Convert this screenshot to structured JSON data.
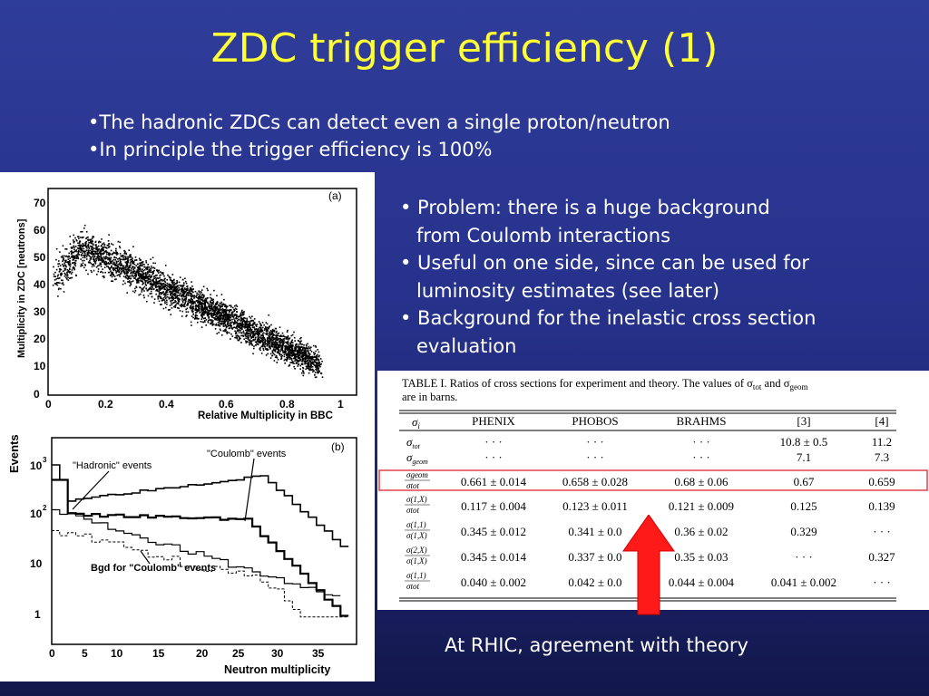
{
  "slide": {
    "title": "ZDC trigger efficiency (1)",
    "intro": [
      "•The hadronic ZDCs can detect even a single proton/neutron",
      "•In principle the trigger efficiency is 100%"
    ],
    "bullets": [
      "• Problem: there is a huge background from Coulomb interactions",
      "• Useful on one side, since can be used for luminosity estimates (see later)",
      "• Background for the inelastic cross section evaluation"
    ],
    "bullet_lines": [
      [
        "• Problem: there is a huge background",
        "from Coulomb interactions"
      ],
      [
        "• Useful on one side, since can be used for",
        "luminosity estimates (see later)"
      ],
      [
        "• Background for the inelastic cross section",
        "evaluation"
      ]
    ],
    "caption": "At RHIC, agreement with theory"
  },
  "plot_a": {
    "panel_label": "(a)",
    "ylabel": "Multiplicity in ZDC  [neutrons]",
    "xlabel": "Relative Multiplicity in BBC",
    "yticks": [
      "0",
      "10",
      "20",
      "30",
      "40",
      "50",
      "60",
      "70"
    ],
    "xticks": [
      "0",
      "0.2",
      "0.4",
      "0.6",
      "0.8",
      "1"
    ]
  },
  "plot_b": {
    "panel_label": "(b)",
    "ylabel": "Events",
    "xlabel": "Neutron multiplicity",
    "yticks": [
      "1",
      "10",
      "10",
      "10"
    ],
    "ytick_exps": [
      "",
      "",
      "2",
      "3"
    ],
    "xticks": [
      "0",
      "5",
      "10",
      "15",
      "20",
      "25",
      "30",
      "35"
    ],
    "annotations": [
      "\"Hadronic\" events",
      "\"Coulomb\" events",
      "Bgd for \"Coulomb\"  events"
    ]
  },
  "table": {
    "caption_line1": "TABLE I.   Ratios of cross sections for experiment and theory.  The values of σ",
    "caption_sub1": "tot",
    "caption_mid": " and σ",
    "caption_sub2": "geom",
    "caption_line2": "are in barns.",
    "headers": [
      "σ_i",
      "PHENIX",
      "PHOBOS",
      "BRAHMS",
      "[3]",
      "[4]"
    ],
    "rows": [
      {
        "label": "σ_tot",
        "cells": [
          "· · ·",
          "· · ·",
          "· · ·",
          "10.8 ± 0.5",
          "11.2"
        ]
      },
      {
        "label": "σ_geom",
        "cells": [
          "· · ·",
          "· · ·",
          "· · ·",
          "7.1",
          "7.3"
        ]
      },
      {
        "label": "σ_geom/σ_tot",
        "cells": [
          "0.661 ± 0.014",
          "0.658 ± 0.028",
          "0.68 ± 0.06",
          "0.67",
          "0.659"
        ]
      },
      {
        "label": "σ(1,X)/σ_tot",
        "cells": [
          "0.117 ± 0.004",
          "0.123 ± 0.011",
          "0.121 ± 0.009",
          "0.125",
          "0.139"
        ]
      },
      {
        "label": "σ(1,1)/σ(1,X)",
        "cells": [
          "0.345 ± 0.012",
          "0.341 ± 0.0",
          "0.36 ± 0.02",
          "0.329",
          "· · ·"
        ]
      },
      {
        "label": "σ(2,X)/σ(1,X)",
        "cells": [
          "0.345 ± 0.014",
          "0.337 ± 0.0",
          "0.35 ± 0.03",
          "· · ·",
          "0.327"
        ]
      },
      {
        "label": "σ(1,1)/σ_tot",
        "cells": [
          "0.040 ± 0.002",
          "0.042 ± 0.0",
          "0.044 ± 0.004",
          "0.041 ± 0.002",
          "· · ·"
        ]
      }
    ],
    "highlight_row": 2,
    "highlight_color": "#e0404a"
  },
  "colors": {
    "title": "#ffff33",
    "text": "#ffffff",
    "arrow": "#ff1a1a"
  }
}
